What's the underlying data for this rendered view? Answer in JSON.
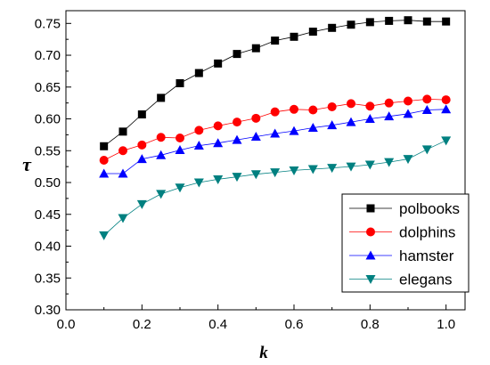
{
  "chart_data": {
    "type": "line",
    "title": "",
    "xlabel": "k",
    "ylabel": "τ",
    "xlim": [
      0.0,
      1.05
    ],
    "ylim": [
      0.3,
      0.77
    ],
    "x_ticks": [
      "0.0",
      "0.2",
      "0.4",
      "0.6",
      "0.8",
      "1.0"
    ],
    "y_ticks": [
      "0.30",
      "0.35",
      "0.40",
      "0.45",
      "0.50",
      "0.55",
      "0.60",
      "0.65",
      "0.70",
      "0.75"
    ],
    "grid": false,
    "legend_position": "bottom-right",
    "x": [
      0.1,
      0.15,
      0.2,
      0.25,
      0.3,
      0.35,
      0.4,
      0.45,
      0.5,
      0.55,
      0.6,
      0.65,
      0.7,
      0.75,
      0.8,
      0.85,
      0.9,
      0.95,
      1.0
    ],
    "series": [
      {
        "name": "polbooks",
        "marker": "square",
        "color": "#000000",
        "values": [
          0.557,
          0.58,
          0.607,
          0.633,
          0.656,
          0.672,
          0.687,
          0.702,
          0.711,
          0.723,
          0.729,
          0.737,
          0.743,
          0.748,
          0.752,
          0.754,
          0.755,
          0.753,
          0.753
        ]
      },
      {
        "name": "dolphins",
        "marker": "circle",
        "color": "#ff0000",
        "values": [
          0.535,
          0.55,
          0.559,
          0.571,
          0.57,
          0.582,
          0.589,
          0.595,
          0.601,
          0.611,
          0.615,
          0.614,
          0.619,
          0.624,
          0.62,
          0.625,
          0.628,
          0.631,
          0.63
        ]
      },
      {
        "name": "hamster",
        "marker": "triangle-up",
        "color": "#0000ff",
        "values": [
          0.514,
          0.514,
          0.537,
          0.543,
          0.551,
          0.558,
          0.562,
          0.567,
          0.572,
          0.577,
          0.581,
          0.586,
          0.59,
          0.595,
          0.6,
          0.604,
          0.608,
          0.614,
          0.615
        ]
      },
      {
        "name": "elegans",
        "marker": "triangle-down",
        "color": "#008080",
        "values": [
          0.417,
          0.444,
          0.466,
          0.482,
          0.492,
          0.5,
          0.505,
          0.509,
          0.513,
          0.516,
          0.519,
          0.521,
          0.523,
          0.525,
          0.528,
          0.532,
          0.537,
          0.552,
          0.566
        ]
      }
    ]
  }
}
